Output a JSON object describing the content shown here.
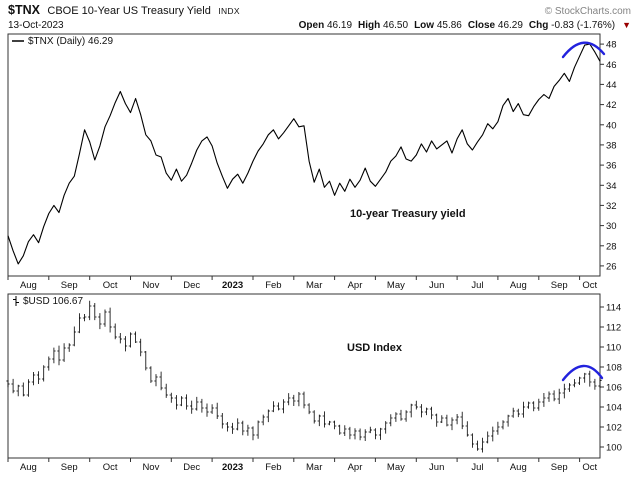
{
  "header": {
    "symbol": "$TNX",
    "description": "CBOE 10-Year US Treasury Yield",
    "exchange": "INDX",
    "copyright": "© StockCharts.com",
    "date": "13-Oct-2023",
    "quote": {
      "open_label": "Open",
      "open": "46.19",
      "high_label": "High",
      "high": "46.50",
      "low_label": "Low",
      "low": "45.86",
      "close_label": "Close",
      "close": "46.29",
      "chg_label": "Chg",
      "chg": "-0.83 (-1.76%)",
      "direction_icon": "▼"
    }
  },
  "chart_data": [
    {
      "type": "line",
      "panel": "top",
      "legend": "$TNX (Daily) 46.29",
      "annotation": "10-year Treasury yield",
      "x_labels": [
        "Aug",
        "Sep",
        "Oct",
        "Nov",
        "Dec",
        "2023",
        "Feb",
        "Mar",
        "Apr",
        "May",
        "Jun",
        "Jul",
        "Aug",
        "Sep",
        "Oct"
      ],
      "points_per_month": 8,
      "ylim": [
        25,
        49
      ],
      "y_ticks": [
        26,
        28,
        30,
        32,
        34,
        36,
        38,
        40,
        42,
        44,
        46,
        48
      ],
      "line_color": "#000000",
      "arc_color": "#2222dd",
      "values": [
        29.0,
        27.5,
        26.2,
        27.0,
        28.4,
        29.1,
        28.3,
        29.9,
        31.2,
        32.0,
        31.3,
        33.0,
        34.2,
        34.9,
        37.1,
        39.5,
        38.3,
        36.5,
        37.9,
        39.8,
        40.9,
        42.2,
        43.3,
        42.1,
        41.2,
        42.6,
        41.0,
        39.0,
        38.4,
        37.0,
        36.8,
        35.2,
        34.5,
        35.6,
        34.4,
        35.0,
        36.2,
        37.5,
        38.4,
        38.8,
        37.9,
        36.2,
        34.9,
        33.7,
        34.6,
        35.1,
        34.2,
        35.2,
        36.4,
        37.4,
        38.1,
        39.0,
        39.5,
        38.6,
        39.2,
        39.9,
        40.6,
        39.8,
        39.9,
        36.4,
        34.3,
        35.6,
        33.8,
        34.4,
        33.0,
        34.2,
        33.4,
        34.6,
        33.8,
        34.5,
        35.7,
        34.4,
        33.9,
        34.6,
        35.3,
        36.4,
        36.9,
        37.8,
        36.6,
        36.4,
        37.0,
        38.1,
        37.3,
        38.4,
        37.6,
        38.0,
        38.4,
        37.2,
        38.6,
        39.5,
        38.1,
        37.5,
        38.3,
        39.0,
        40.1,
        39.6,
        40.3,
        41.9,
        42.6,
        41.3,
        42.1,
        41.0,
        40.9,
        41.8,
        42.5,
        43.0,
        42.6,
        43.8,
        44.4,
        45.1,
        44.3,
        45.7,
        46.8,
        47.9,
        48.0,
        47.2,
        46.29
      ]
    },
    {
      "type": "ohlc",
      "panel": "bottom",
      "legend": "$USD 106.67",
      "annotation": "USD Index",
      "x_labels": [
        "Aug",
        "Sep",
        "Oct",
        "Nov",
        "Dec",
        "2023",
        "Feb",
        "Mar",
        "Apr",
        "May",
        "Jun",
        "Jul",
        "Aug",
        "Sep",
        "Oct"
      ],
      "points_per_month": 8,
      "ylim": [
        98.9,
        115.3
      ],
      "y_ticks": [
        100,
        102,
        104,
        106,
        108,
        110,
        112,
        114
      ],
      "line_color": "#000000",
      "arc_color": "#2222dd",
      "values": [
        106.3,
        105.6,
        106.1,
        105.2,
        106.5,
        107.2,
        106.8,
        108.0,
        108.8,
        109.6,
        108.7,
        109.9,
        110.2,
        111.5,
        112.9,
        113.0,
        114.1,
        113.0,
        112.3,
        113.5,
        112.0,
        111.0,
        110.8,
        110.1,
        111.3,
        110.5,
        109.5,
        107.9,
        106.6,
        107.0,
        105.9,
        105.2,
        104.9,
        104.2,
        104.9,
        104.1,
        103.8,
        104.5,
        103.9,
        103.5,
        103.9,
        103.1,
        102.3,
        102.0,
        101.8,
        102.4,
        101.6,
        101.9,
        101.2,
        102.5,
        103.0,
        103.6,
        104.1,
        103.8,
        104.5,
        104.9,
        104.6,
        105.3,
        104.2,
        103.5,
        102.6,
        103.1,
        102.3,
        102.5,
        102.1,
        101.4,
        101.8,
        101.2,
        101.6,
        101.0,
        101.5,
        101.7,
        101.2,
        101.8,
        102.4,
        102.9,
        103.3,
        102.8,
        103.5,
        104.2,
        104.0,
        103.5,
        103.8,
        103.2,
        102.5,
        102.9,
        102.2,
        102.7,
        103.0,
        102.1,
        101.2,
        100.3,
        99.8,
        100.5,
        101.1,
        101.6,
        102.0,
        102.5,
        103.1,
        103.6,
        103.3,
        104.0,
        104.4,
        103.9,
        104.5,
        104.9,
        105.3,
        104.8,
        105.4,
        105.8,
        106.2,
        106.4,
        106.9,
        107.3,
        106.5,
        106.1,
        106.67
      ]
    }
  ]
}
